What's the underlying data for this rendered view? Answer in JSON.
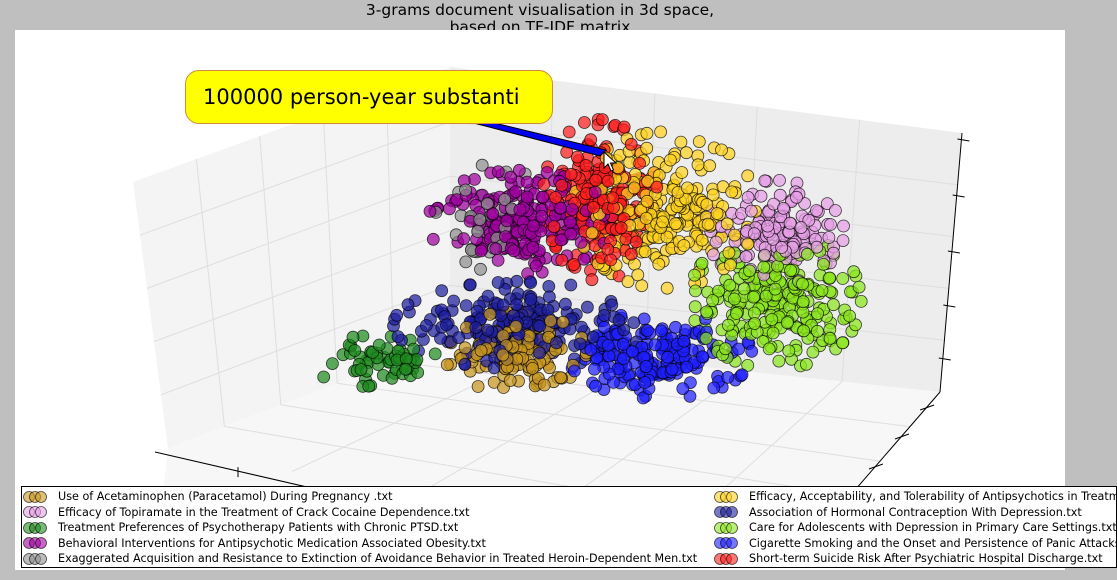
{
  "chart_data": {
    "type": "scatter",
    "projection": "3d",
    "title_line1": "3-grams document visualisation in 3d space,",
    "title_line2": "based on TF-IDF matrix",
    "grid": true,
    "legend_position": "bottom",
    "series": [
      {
        "name": "Use of Acetaminophen (Paracetamol) During Pregnancy .txt",
        "color": "#c8961e",
        "cx": 515,
        "cy": 352,
        "rx": 62,
        "ry": 35,
        "n": 150
      },
      {
        "name": "Efficacy of Topiramate in the Treatment of Crack Cocaine Dependence.txt",
        "color": "#e6a0e6",
        "cx": 775,
        "cy": 232,
        "rx": 60,
        "ry": 45,
        "n": 150
      },
      {
        "name": "Treatment Preferences of Psychotherapy Patients with Chronic PTSD.txt",
        "color": "#1e8c1e",
        "cx": 375,
        "cy": 362,
        "rx": 55,
        "ry": 23,
        "n": 60
      },
      {
        "name": "Behavioral Interventions for Antipsychotic Medication Associated Obesity.txt",
        "color": "#a000a0",
        "cx": 520,
        "cy": 222,
        "rx": 80,
        "ry": 45,
        "n": 220
      },
      {
        "name": "Exaggerated Acquisition and Resistance to Extinction of Avoidance Behavior in Treated Heroin-Dependent Men.txt",
        "color": "#909090",
        "cx": 490,
        "cy": 220,
        "rx": 60,
        "ry": 48,
        "n": 40
      },
      {
        "name": "Efficacy, Acceptability, and Tolerability of Antipsychotics in Treatment-Resistant Schizophrenia.txt",
        "color": "#ffd21e",
        "cx": 665,
        "cy": 210,
        "rx": 80,
        "ry": 68,
        "n": 230
      },
      {
        "name": "Association of Hormonal Contraception With Depression.txt",
        "color": "#1e1ea0",
        "cx": 520,
        "cy": 325,
        "rx": 110,
        "ry": 38,
        "n": 200
      },
      {
        "name": "Care for Adolescents with Depression in Primary Care Settings.txt",
        "color": "#8ce61e",
        "cx": 775,
        "cy": 300,
        "rx": 75,
        "ry": 60,
        "n": 260
      },
      {
        "name": "Cigarette Smoking and the Onset and Persistence of Panic Attacks.txt",
        "color": "#1e1eff",
        "cx": 660,
        "cy": 355,
        "rx": 80,
        "ry": 38,
        "n": 200
      },
      {
        "name": "Short-term Suicide Risk After Psychiatric Hospital Discharge.txt",
        "color": "#ff1e1e",
        "cx": 600,
        "cy": 200,
        "rx": 50,
        "ry": 70,
        "n": 200
      }
    ]
  },
  "tooltip": {
    "text": "100000 person-year substanti"
  }
}
